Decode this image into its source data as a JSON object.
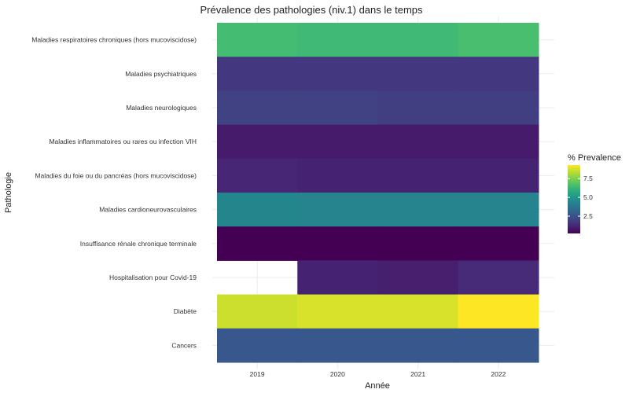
{
  "chart_data": {
    "type": "heatmap",
    "title": "Prévalence des pathologies (niv.1) dans le temps",
    "xlabel": "Année",
    "ylabel": "Pathologie",
    "categories_x": [
      "2019",
      "2020",
      "2021",
      "2022"
    ],
    "categories_y": [
      "Maladies respiratoires chroniques (hors mucoviscidose)",
      "Maladies psychiatriques",
      "Maladies neurologiques",
      "Maladies inflammatoires ou rares ou infection VIH",
      "Maladies du foie ou du pancréas (hors mucoviscidose)",
      "Maladies cardioneurovasculaires",
      "Insuffisance rénale chronique terminale",
      "Hospitalisation pour Covid-19",
      "Diabète",
      "Cancers"
    ],
    "values": [
      [
        6.5,
        6.4,
        6.4,
        6.6
      ],
      [
        1.7,
        1.7,
        1.7,
        1.7
      ],
      [
        2.0,
        2.0,
        1.9,
        1.9
      ],
      [
        0.9,
        0.9,
        0.9,
        0.9
      ],
      [
        1.2,
        1.1,
        1.1,
        1.1
      ],
      [
        4.4,
        4.3,
        4.3,
        4.3
      ],
      [
        0.2,
        0.2,
        0.2,
        0.2
      ],
      [
        null,
        1.1,
        1.0,
        1.3
      ],
      [
        8.6,
        8.8,
        8.8,
        9.3
      ],
      [
        2.7,
        2.7,
        2.7,
        2.7
      ]
    ],
    "legend": {
      "title": "% Prevalence",
      "ticks": [
        "2.5",
        "5.0",
        "7.5"
      ],
      "tick_values": [
        2.5,
        5.0,
        7.5
      ],
      "range": [
        0.2,
        9.3
      ],
      "placement": "right"
    },
    "colormap": "viridis",
    "grid": true
  }
}
